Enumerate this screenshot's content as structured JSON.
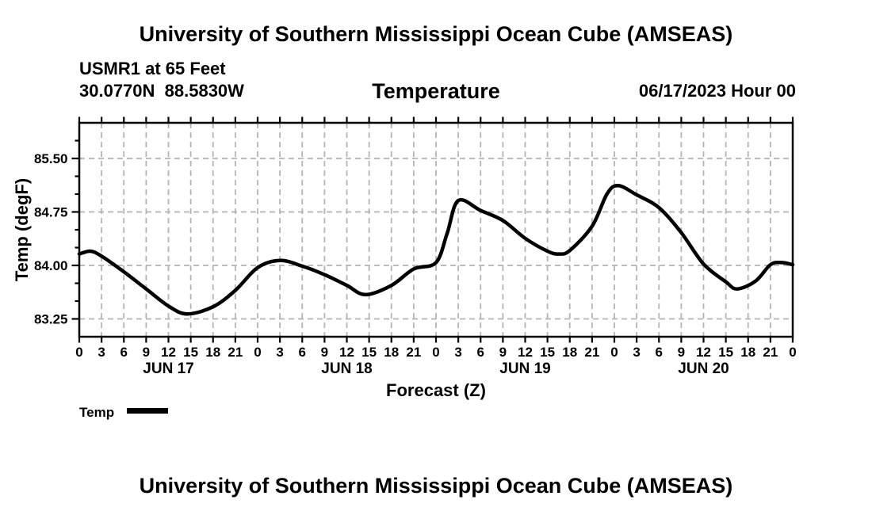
{
  "header": {
    "title": "University of Southern Mississippi Ocean Cube (AMSEAS)",
    "station": "USMR1 at 65 Feet",
    "coordinates": "30.0770N  88.5830W",
    "plot_title": "Temperature",
    "datetime": "06/17/2023 Hour 00"
  },
  "footer": {
    "title": "University of Southern Mississippi Ocean Cube (AMSEAS)"
  },
  "legend": {
    "label": "Temp",
    "swatch_color": "#000000"
  },
  "colors": {
    "background": "#ffffff",
    "text": "#000000",
    "grid": "#b4b4b4",
    "line": "#000000"
  },
  "chart_data": {
    "type": "line",
    "title": "Temperature",
    "xlabel": "Forecast (Z)",
    "ylabel": "Temp (degF)",
    "x_unit": "hours (Z) starting 06/17/2023 00Z",
    "xlim": [
      0,
      96
    ],
    "x_major_step": 3,
    "xtick_label_cycle": [
      "0",
      "3",
      "6",
      "9",
      "12",
      "15",
      "18",
      "21"
    ],
    "day_labels": [
      {
        "label": "JUN 17",
        "hour": 12
      },
      {
        "label": "JUN 18",
        "hour": 36
      },
      {
        "label": "JUN 19",
        "hour": 60
      },
      {
        "label": "JUN 20",
        "hour": 84
      }
    ],
    "ylim": [
      83.0,
      86.0
    ],
    "y_minor_step": 0.25,
    "yticks": [
      {
        "value": 83.25,
        "label": "83.25"
      },
      {
        "value": 84.0,
        "label": "84.00"
      },
      {
        "value": 84.75,
        "label": "84.75"
      },
      {
        "value": 85.5,
        "label": "85.50"
      }
    ],
    "grid": "dashed",
    "legend_position": "bottom-left",
    "series": [
      {
        "name": "Temp",
        "color": "#000000",
        "points": [
          [
            0,
            84.16
          ],
          [
            1.5,
            84.2
          ],
          [
            3,
            84.13
          ],
          [
            6,
            83.91
          ],
          [
            9,
            83.67
          ],
          [
            12,
            83.43
          ],
          [
            14.5,
            83.32
          ],
          [
            18,
            83.42
          ],
          [
            21,
            83.65
          ],
          [
            24,
            83.97
          ],
          [
            27,
            84.07
          ],
          [
            30,
            83.99
          ],
          [
            33,
            83.87
          ],
          [
            36,
            83.72
          ],
          [
            38.5,
            83.59
          ],
          [
            42,
            83.72
          ],
          [
            45,
            83.95
          ],
          [
            48,
            84.04
          ],
          [
            49.5,
            84.45
          ],
          [
            51,
            84.91
          ],
          [
            54,
            84.77
          ],
          [
            57,
            84.63
          ],
          [
            60,
            84.38
          ],
          [
            63,
            84.2
          ],
          [
            64.5,
            84.16
          ],
          [
            66,
            84.21
          ],
          [
            69,
            84.55
          ],
          [
            71,
            85.0
          ],
          [
            72.5,
            85.12
          ],
          [
            75,
            84.99
          ],
          [
            78,
            84.81
          ],
          [
            81,
            84.46
          ],
          [
            84,
            84.02
          ],
          [
            87,
            83.77
          ],
          [
            88.5,
            83.67
          ],
          [
            91,
            83.78
          ],
          [
            93,
            84.01
          ],
          [
            94.5,
            84.04
          ],
          [
            96,
            84.01
          ]
        ]
      }
    ]
  }
}
